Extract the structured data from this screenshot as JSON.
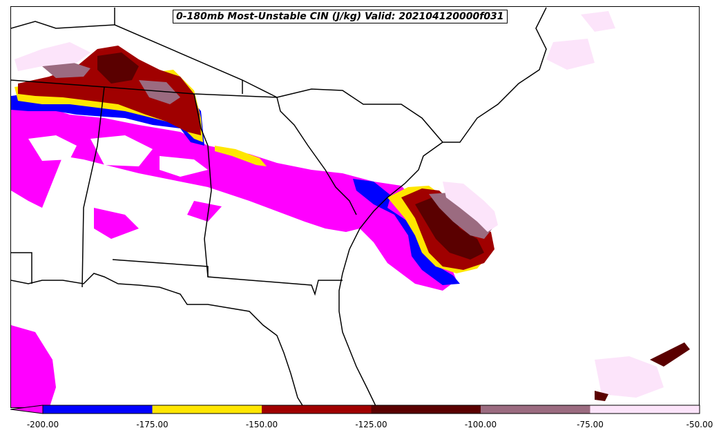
{
  "title": "0-180mb Most-Unstable CIN (J/kg) Valid: 202104120000f031",
  "colorbar": {
    "ticks": [
      "-200.00",
      "-175.00",
      "-150.00",
      "-125.00",
      "-100.00",
      "-75.00",
      "-50.00"
    ],
    "under_color": "#ff00ff",
    "bins": [
      {
        "range": [
          -200,
          -175
        ],
        "color": "#0000ff"
      },
      {
        "range": [
          -175,
          -150
        ],
        "color": "#ffe600"
      },
      {
        "range": [
          -150,
          -125
        ],
        "color": "#a00000"
      },
      {
        "range": [
          -125,
          -100
        ],
        "color": "#5a0000"
      },
      {
        "range": [
          -100,
          -75
        ],
        "color": "#9b6b80"
      },
      {
        "range": [
          -75,
          -50
        ],
        "color": "#fce4fa"
      }
    ]
  },
  "map": {
    "region": "Southeastern United States",
    "variable": "Most-Unstable CIN",
    "units": "J/kg"
  }
}
